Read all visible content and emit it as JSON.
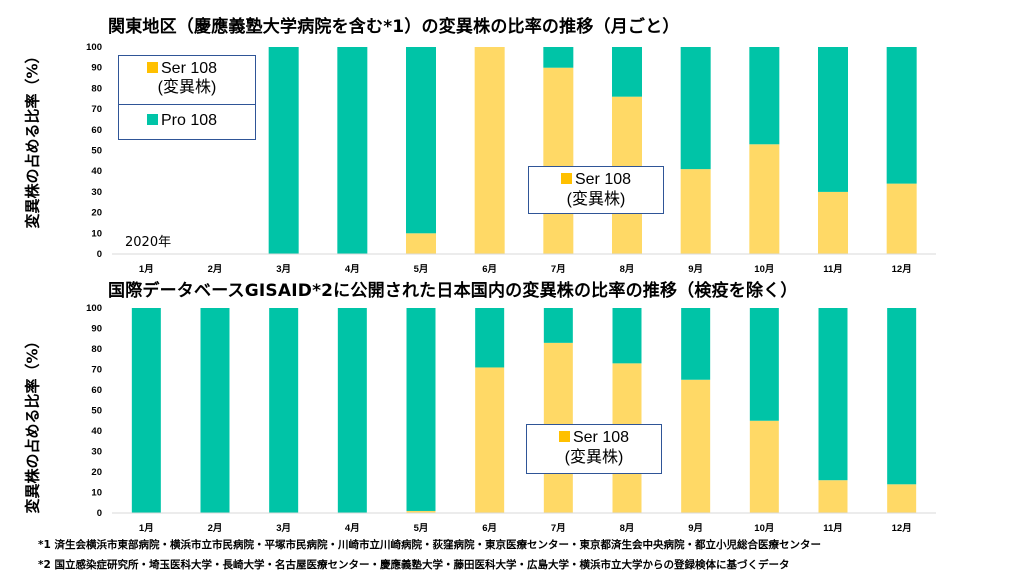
{
  "colors": {
    "ser": "#ffd966",
    "pro": "#00c4a7",
    "legend_border": "#2f5597",
    "grid": "#d9d9d9"
  },
  "chart_data": [
    {
      "type": "bar",
      "stacked": true,
      "title": "関東地区（慶應義塾大学病院を含む*1）の変異株の比率の推移（月ごと）",
      "ylabel": "変異株の占める比率（%）",
      "ylim": [
        0,
        100
      ],
      "yticks": [
        0,
        10,
        20,
        30,
        40,
        50,
        60,
        70,
        80,
        90,
        100
      ],
      "grid": false,
      "year_label": "2020年",
      "categories": [
        "1月",
        "2月",
        "3月",
        "4月",
        "5月",
        "6月",
        "7月",
        "8月",
        "9月",
        "10月",
        "11月",
        "12月"
      ],
      "series": [
        {
          "name": "Ser 108 (変異株)",
          "values": [
            0,
            0,
            0,
            0,
            10,
            100,
            90,
            76,
            41,
            53,
            30,
            34
          ]
        },
        {
          "name": "Pro 108",
          "values": [
            0,
            0,
            100,
            100,
            90,
            0,
            10,
            24,
            59,
            47,
            70,
            66
          ]
        }
      ],
      "legend": {
        "ser_line1": "Ser 108",
        "ser_line2": "(変異株)",
        "pro_line1": "Pro 108",
        "placement": "top-left"
      },
      "annotation": {
        "line1": "Ser 108",
        "line2": "(変異株)"
      }
    },
    {
      "type": "bar",
      "stacked": true,
      "title": "国際データベースGISAID*2に公開された日本国内の変異株の比率の推移（検疫を除く）",
      "ylabel": "変異株の占める比率（%）",
      "ylim": [
        0,
        100
      ],
      "yticks": [
        0,
        10,
        20,
        30,
        40,
        50,
        60,
        70,
        80,
        90,
        100
      ],
      "grid": false,
      "categories": [
        "1月",
        "2月",
        "3月",
        "4月",
        "5月",
        "6月",
        "7月",
        "8月",
        "9月",
        "10月",
        "11月",
        "12月"
      ],
      "series": [
        {
          "name": "Ser 108 (変異株)",
          "values": [
            0,
            0,
            0,
            0,
            1,
            71,
            83,
            73,
            65,
            45,
            16,
            14
          ]
        },
        {
          "name": "Pro 108",
          "values": [
            100,
            100,
            100,
            100,
            99,
            29,
            17,
            27,
            35,
            55,
            84,
            86
          ]
        }
      ],
      "annotation": {
        "line1": "Ser 108",
        "line2": "(変異株)"
      }
    }
  ],
  "footnotes": [
    "*1 済生会横浜市東部病院・横浜市立市民病院・平塚市民病院・川崎市立川崎病院・荻窪病院・東京医療センター・東京都済生会中央病院・都立小児総合医療センター",
    "*2 国立感染症研究所・埼玉医科大学・長崎大学・名古屋医療センター・慶應義塾大学・藤田医科大学・広島大学・横浜市立大学からの登録検体に基づくデータ"
  ]
}
